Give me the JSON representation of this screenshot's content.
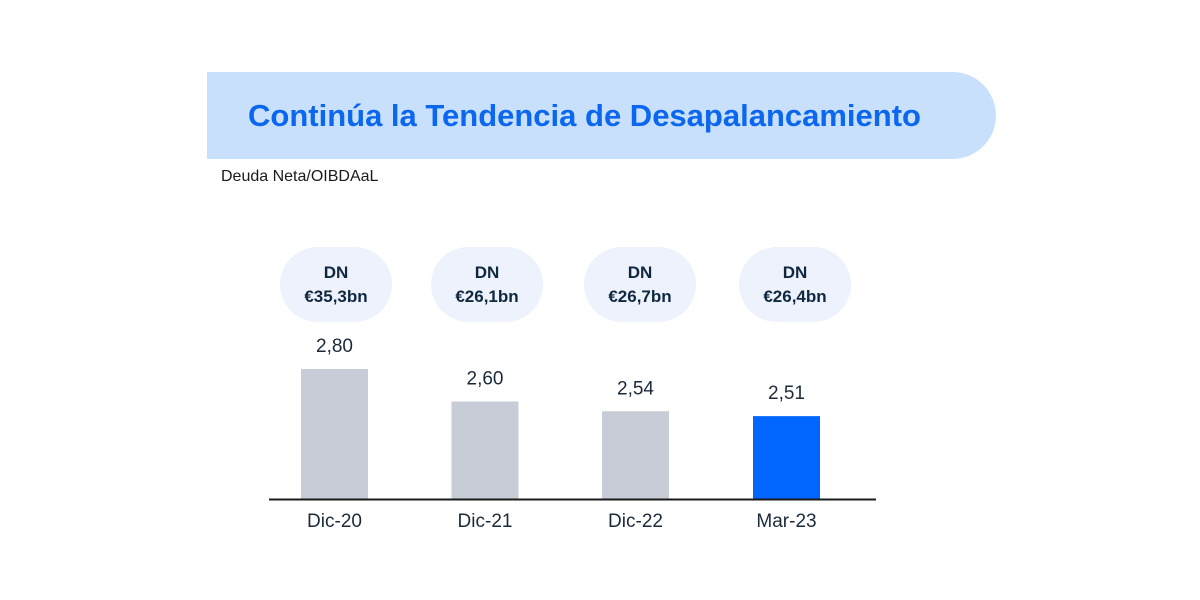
{
  "header": {
    "title": "Continúa la Tendencia de Desapalancamiento",
    "subtitle": "Deuda Neta/OIBDAaL"
  },
  "badges": [
    {
      "label": "DN",
      "value": "€35,3bn"
    },
    {
      "label": "DN",
      "value": "€26,1bn"
    },
    {
      "label": "DN",
      "value": "€26,7bn"
    },
    {
      "label": "DN",
      "value": "€26,4bn"
    }
  ],
  "chart_data": {
    "type": "bar",
    "title": "Continúa la Tendencia de Desapalancamiento",
    "subtitle": "Deuda Neta/OIBDAaL",
    "categories": [
      "Dic-20",
      "Dic-21",
      "Dic-22",
      "Mar-23"
    ],
    "values": [
      2.8,
      2.6,
      2.54,
      2.51
    ],
    "value_labels": [
      "2,80",
      "2,60",
      "2,54",
      "2,51"
    ],
    "bar_colors": [
      "#c8ccd6",
      "#c8ccd6",
      "#c8ccd6",
      "#0066ff"
    ],
    "ylim": [
      2.0,
      2.8
    ],
    "grid": false,
    "legend": "none"
  }
}
